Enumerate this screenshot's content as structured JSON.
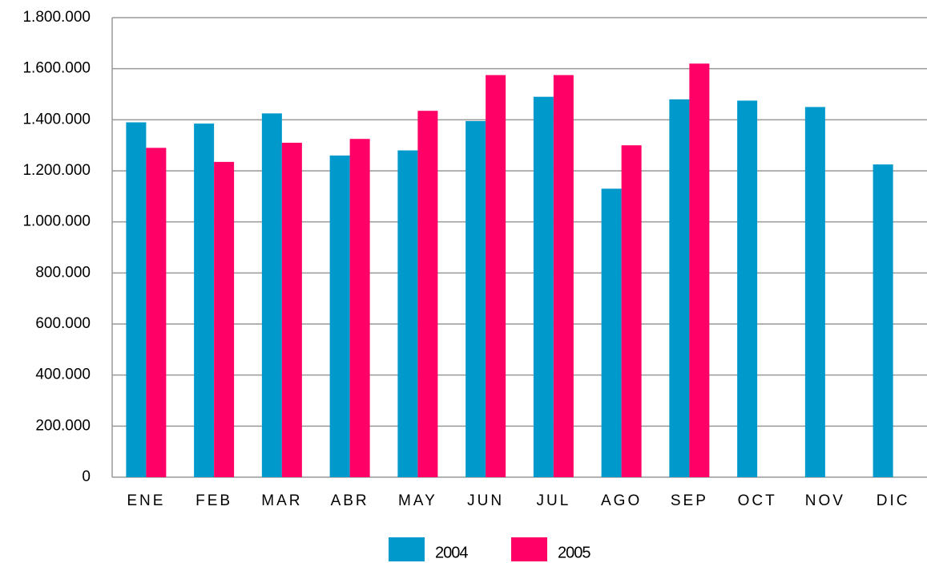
{
  "chart_data": {
    "type": "bar",
    "categories": [
      "ENE",
      "FEB",
      "MAR",
      "ABR",
      "MAY",
      "JUN",
      "JUL",
      "AGO",
      "SEP",
      "OCT",
      "NOV",
      "DIC"
    ],
    "series": [
      {
        "name": "2004",
        "color": "#0099cc",
        "values": [
          1390000,
          1385000,
          1425000,
          1260000,
          1280000,
          1395000,
          1490000,
          1130000,
          1480000,
          1475000,
          1450000,
          1225000
        ]
      },
      {
        "name": "2005",
        "color": "#ff0066",
        "values": [
          1290000,
          1235000,
          1310000,
          1325000,
          1435000,
          1575000,
          1575000,
          1300000,
          1620000,
          null,
          null,
          null
        ]
      }
    ],
    "ylim": [
      0,
      1800000
    ],
    "yticks": [
      0,
      {
        "value": 200000,
        "label": "200.000"
      },
      {
        "value": 400000,
        "label": "400.000"
      },
      {
        "value": 600000,
        "label": "600.000"
      },
      {
        "value": 800000,
        "label": "800.000"
      },
      {
        "value": 1000000,
        "label": "1.000.000"
      },
      {
        "value": 1200000,
        "label": "1.200.000"
      },
      {
        "value": 1400000,
        "label": "1.400.000"
      },
      {
        "value": 1600000,
        "label": "1.600.000"
      },
      {
        "value": 1800000,
        "label": "1.800.000"
      }
    ],
    "grid": true
  }
}
